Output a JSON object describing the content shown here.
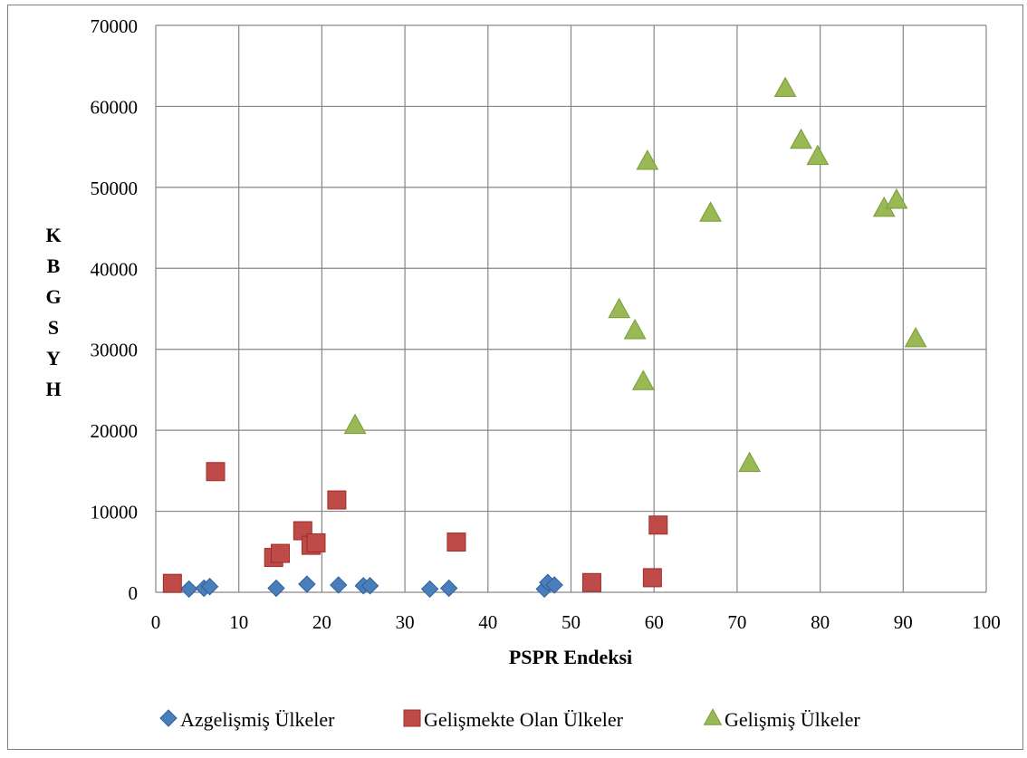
{
  "chart_data": {
    "type": "scatter",
    "title": "",
    "xlabel": "PSPR Endeksi",
    "ylabel": "KBGSYH",
    "xlim": [
      0,
      100
    ],
    "ylim": [
      0,
      70000
    ],
    "x_ticks": [
      0,
      10,
      20,
      30,
      40,
      50,
      60,
      70,
      80,
      90,
      100
    ],
    "y_ticks": [
      0,
      10000,
      20000,
      30000,
      40000,
      50000,
      60000,
      70000
    ],
    "grid": true,
    "legend_position": "bottom",
    "series": [
      {
        "name": "Azgelişmiş Ülkeler",
        "marker": "diamond",
        "color": "#4a7ebb",
        "points": [
          [
            4,
            400
          ],
          [
            5.8,
            500
          ],
          [
            6.5,
            700
          ],
          [
            14.5,
            500
          ],
          [
            18.2,
            1000
          ],
          [
            22,
            900
          ],
          [
            25,
            800
          ],
          [
            25.8,
            800
          ],
          [
            33,
            400
          ],
          [
            35.3,
            500
          ],
          [
            46.8,
            400
          ],
          [
            47.2,
            1200
          ],
          [
            48,
            900
          ]
        ]
      },
      {
        "name": "Gelişmekte Olan Ülkeler",
        "marker": "square",
        "color": "#be4b48",
        "points": [
          [
            2,
            1100
          ],
          [
            7.2,
            14900
          ],
          [
            14.2,
            4300
          ],
          [
            15,
            4800
          ],
          [
            17.7,
            7600
          ],
          [
            18.7,
            5800
          ],
          [
            19.3,
            6100
          ],
          [
            21.8,
            11400
          ],
          [
            36.2,
            6200
          ],
          [
            52.5,
            1200
          ],
          [
            59.8,
            1800
          ],
          [
            60.5,
            8300
          ]
        ]
      },
      {
        "name": "Gelişmiş Ülkeler",
        "marker": "triangle",
        "color": "#98b954",
        "points": [
          [
            24,
            20600
          ],
          [
            55.8,
            34900
          ],
          [
            57.7,
            32300
          ],
          [
            58.7,
            26000
          ],
          [
            59.2,
            53200
          ],
          [
            66.8,
            46800
          ],
          [
            71.5,
            15900
          ],
          [
            75.8,
            62200
          ],
          [
            77.7,
            55800
          ],
          [
            79.7,
            53800
          ],
          [
            87.7,
            47400
          ],
          [
            89.2,
            48400
          ],
          [
            91.5,
            31300
          ]
        ]
      }
    ]
  }
}
